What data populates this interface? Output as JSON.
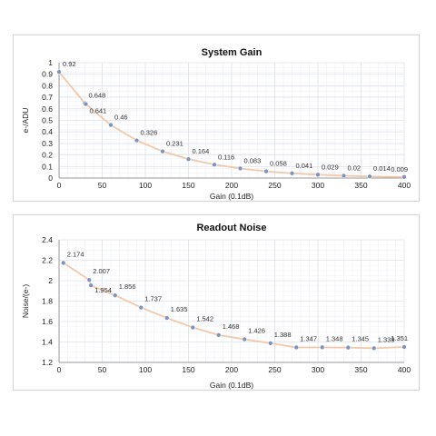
{
  "chart_data": [
    {
      "type": "line",
      "title": "System Gain",
      "xlabel": "Gain (0.1dB)",
      "ylabel": "e-/ADU",
      "xlim": [
        0,
        400
      ],
      "ylim": [
        0,
        1
      ],
      "xticks": [
        "0",
        "50",
        "100",
        "150",
        "200",
        "250",
        "300",
        "350",
        "400"
      ],
      "yticks": [
        "0",
        "0.1",
        "0.2",
        "0.3",
        "0.4",
        "0.5",
        "0.6",
        "0.7",
        "0.8",
        "0.9",
        "1"
      ],
      "grid": true,
      "line_color": "#f0c9a8",
      "marker_color": "#7b95bd",
      "x": [
        0,
        30,
        31,
        60,
        90,
        120,
        150,
        180,
        210,
        240,
        270,
        300,
        330,
        360,
        400
      ],
      "y": [
        0.92,
        0.648,
        0.641,
        0.46,
        0.326,
        0.231,
        0.164,
        0.116,
        0.083,
        0.058,
        0.041,
        0.029,
        0.02,
        0.014,
        0.009
      ],
      "labels": [
        "0.92",
        "0.648",
        "0.641",
        "0.46",
        "0.326",
        "0.231",
        "0.164",
        "0.116",
        "0.083",
        "0.058",
        "0.041",
        "0.029",
        "0.02",
        "0.014",
        "0.009"
      ]
    },
    {
      "type": "line",
      "title": "Readout Noise",
      "xlabel": "Gain (0.1dB)",
      "ylabel": "Noise/(e-)",
      "xlim": [
        0,
        400
      ],
      "ylim": [
        1.2,
        2.4
      ],
      "xticks": [
        "0",
        "50",
        "100",
        "150",
        "200",
        "250",
        "300",
        "350",
        "400"
      ],
      "yticks": [
        "1.2",
        "1.4",
        "1.6",
        "1.8",
        "2",
        "2.2",
        "2.4"
      ],
      "grid": true,
      "line_color": "#f0c9a8",
      "marker_color": "#7b95bd",
      "x": [
        5,
        35,
        37,
        65,
        95,
        125,
        155,
        185,
        215,
        245,
        275,
        305,
        335,
        365,
        400
      ],
      "y": [
        2.174,
        2.007,
        1.954,
        1.856,
        1.737,
        1.635,
        1.542,
        1.468,
        1.426,
        1.388,
        1.347,
        1.348,
        1.345,
        1.339,
        1.351
      ],
      "labels": [
        "2.174",
        "2.007",
        "1.954",
        "1.856",
        "1.737",
        "1.635",
        "1.542",
        "1.468",
        "1.426",
        "1.388",
        "1.347",
        "1.348",
        "1.345",
        "1.339",
        "1.351"
      ]
    }
  ]
}
